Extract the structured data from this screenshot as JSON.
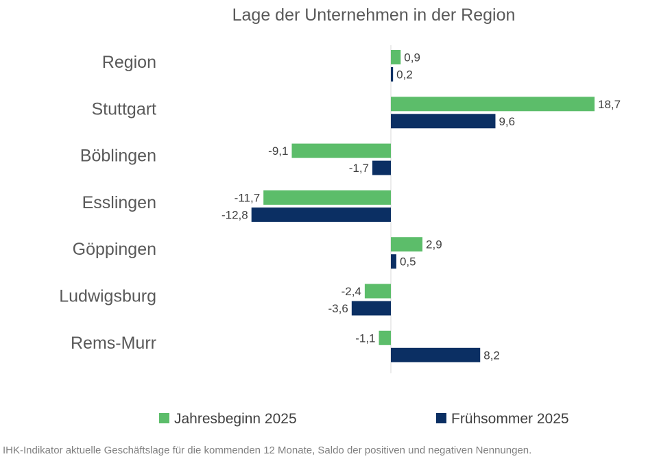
{
  "chart_data": {
    "type": "bar",
    "orientation": "horizontal",
    "title": "Lage der Unternehmen in der Region",
    "categories": [
      "Region",
      "Stuttgart",
      "Böblingen",
      "Esslingen",
      "Göppingen",
      "Ludwigsburg",
      "Rems-Murr"
    ],
    "series": [
      {
        "name": "Jahresbeginn 2025",
        "color": "#5cbd6a",
        "values": [
          0.9,
          18.7,
          -9.1,
          -11.7,
          2.9,
          -2.4,
          -1.1
        ],
        "labels": [
          "0,9",
          "18,7",
          "-9,1",
          "-11,7",
          "2,9",
          "-2,4",
          "-1,1"
        ]
      },
      {
        "name": "Frühsommer 2025",
        "color": "#0b2f63",
        "values": [
          0.2,
          9.6,
          -1.7,
          -12.8,
          0.5,
          -3.6,
          8.2
        ],
        "labels": [
          "0,2",
          "9,6",
          "-1,7",
          "-12,8",
          "0,5",
          "-3,6",
          "8,2"
        ]
      }
    ],
    "xlim": [
      -13.5,
      19.5
    ],
    "legend_position": "bottom",
    "grid": false
  },
  "footnote": "IHK-Indikator aktuelle Geschäftslage für die kommenden 12 Monate, Saldo der positiven und negativen Nennungen."
}
